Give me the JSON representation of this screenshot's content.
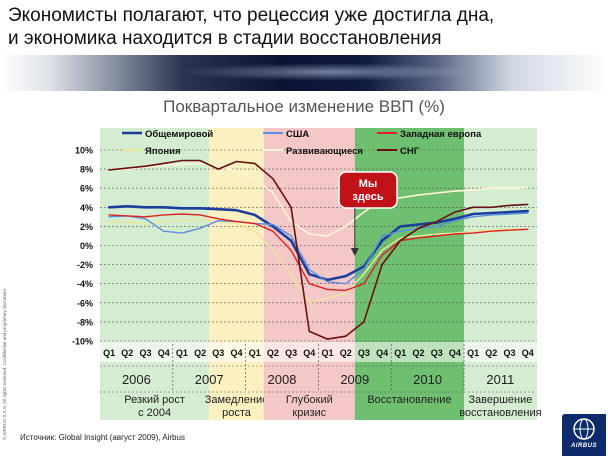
{
  "slide": {
    "title_line1": "Экономисты полагают, что рецессия уже достигла дна,",
    "title_line2": "и экономика находится в стадии восстановления",
    "source": "Источник: Global Insight (август 2009), Airbus",
    "copyright": "© AIRBUS S.A.S. All rights reserved. Confidential and proprietary document.",
    "logo_text": "AIRBUS"
  },
  "colors": {
    "phase_rapid": "#d4ecd0",
    "phase_slow": "#faf0c0",
    "phase_deep": "#f5c8c8",
    "phase_recovery": "#6fbf70",
    "phase_end": "#d4ecd0",
    "callout": "#c1121a"
  },
  "chart_data": {
    "type": "line",
    "title": "Поквартальное изменение ВВП (%)",
    "xlabel": "",
    "ylabel": "",
    "ylim": [
      -10,
      10
    ],
    "y_ticks": [
      "10%",
      "8%",
      "6%",
      "4%",
      "2%",
      "0%",
      "-2%",
      "-4%",
      "-6%",
      "-8%",
      "-10%"
    ],
    "grid": true,
    "legend_position": "top",
    "x": [
      "Q1",
      "Q2",
      "Q3",
      "Q4",
      "Q1",
      "Q2",
      "Q3",
      "Q4",
      "Q1",
      "Q2",
      "Q3",
      "Q4",
      "Q1",
      "Q2",
      "Q3",
      "Q4",
      "Q1",
      "Q2",
      "Q3",
      "Q4",
      "Q1",
      "Q2",
      "Q3",
      "Q4"
    ],
    "years": [
      "2006",
      "2007",
      "2008",
      "2009",
      "2010",
      "2011"
    ],
    "phases": [
      {
        "label": "Резкий рост с 2004",
        "start": 1,
        "end": 7
      },
      {
        "label": "Замедление роста",
        "start": 7,
        "end": 10
      },
      {
        "label": "Глубокий кризис",
        "start": 10,
        "end": 15
      },
      {
        "label": "Восстановление",
        "start": 15,
        "end": 21
      },
      {
        "label": "Завершение восстановления",
        "start": 21,
        "end": 25
      }
    ],
    "callout": {
      "label": "Мы здесь",
      "x": 15.0
    },
    "series": [
      {
        "name": "Общемировой",
        "color": "#1c3f9e",
        "width": 2.6,
        "values": [
          4.0,
          4.1,
          4.0,
          4.0,
          3.9,
          3.9,
          3.8,
          3.7,
          3.2,
          2.0,
          0.5,
          -3.0,
          -3.6,
          -3.2,
          -2.2,
          0.5,
          2.0,
          2.2,
          2.4,
          2.8,
          3.3,
          3.4,
          3.5,
          3.6
        ]
      },
      {
        "name": "Япония",
        "color": "#e8e89a",
        "width": 1.4,
        "values": [
          2.4,
          2.5,
          2.2,
          2.5,
          2.6,
          2.8,
          2.5,
          2.3,
          1.5,
          -0.5,
          -3.0,
          -6.0,
          -5.5,
          -5.0,
          -3.0,
          -0.5,
          0.8,
          1.0,
          1.2,
          1.3,
          1.5,
          1.6,
          1.7,
          1.7
        ]
      },
      {
        "name": "США",
        "color": "#5b8fe0",
        "width": 1.4,
        "values": [
          3.0,
          3.1,
          2.8,
          1.5,
          1.3,
          1.8,
          2.6,
          2.5,
          2.3,
          2.2,
          1.0,
          -2.5,
          -3.8,
          -4.0,
          -2.5,
          1.0,
          1.5,
          1.8,
          2.0,
          2.6,
          3.0,
          3.2,
          3.3,
          3.4
        ]
      },
      {
        "name": "Развивающиеся",
        "color": "#fff6d8",
        "width": 1.6,
        "values": [
          7.8,
          8.0,
          8.2,
          8.4,
          8.5,
          8.6,
          8.3,
          7.8,
          7.0,
          5.5,
          2.5,
          1.2,
          1.0,
          2.0,
          3.5,
          4.8,
          5.0,
          5.3,
          5.5,
          5.7,
          5.8,
          6.0,
          6.0,
          6.1
        ]
      },
      {
        "name": "Западная европа",
        "color": "#e02020",
        "width": 1.4,
        "values": [
          3.2,
          3.1,
          3.0,
          3.2,
          3.3,
          3.2,
          2.8,
          2.5,
          2.3,
          1.5,
          -0.5,
          -4.0,
          -4.6,
          -4.7,
          -4.0,
          -1.0,
          0.5,
          0.8,
          1.0,
          1.2,
          1.3,
          1.5,
          1.6,
          1.7
        ]
      },
      {
        "name": "СНГ",
        "color": "#6a1010",
        "width": 1.6,
        "values": [
          7.9,
          8.1,
          8.3,
          8.6,
          8.9,
          8.9,
          8.0,
          8.8,
          8.6,
          7.0,
          4.0,
          -9.0,
          -9.8,
          -9.5,
          -8.0,
          -2.0,
          0.5,
          1.8,
          2.5,
          3.5,
          4.0,
          4.0,
          4.2,
          4.3
        ]
      }
    ]
  }
}
